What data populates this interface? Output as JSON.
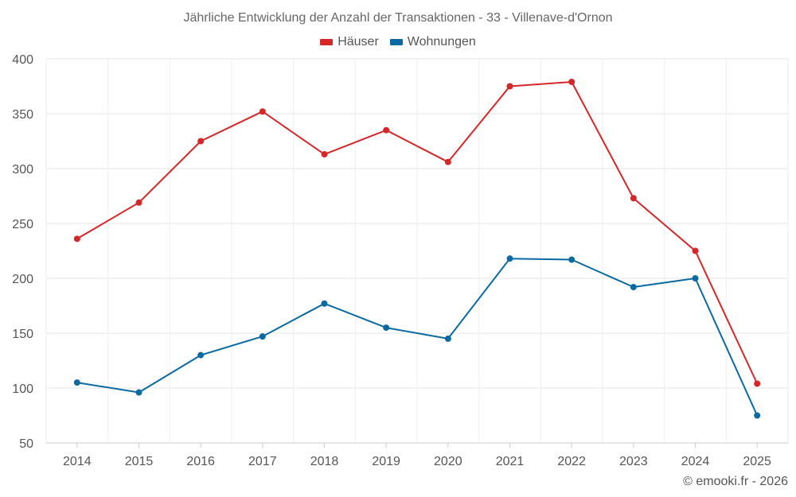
{
  "chart_data": {
    "type": "line",
    "title": "Jährliche Entwicklung der Anzahl der Transaktionen - 33 - Villenave-d'Ornon",
    "categories": [
      "2014",
      "2015",
      "2016",
      "2017",
      "2018",
      "2019",
      "2020",
      "2021",
      "2022",
      "2023",
      "2024",
      "2025"
    ],
    "series": [
      {
        "name": "Häuser",
        "color": "#d62728",
        "values": [
          236,
          269,
          325,
          352,
          313,
          335,
          306,
          375,
          379,
          273,
          225,
          104
        ]
      },
      {
        "name": "Wohnungen",
        "color": "#0a6aa1",
        "values": [
          105,
          96,
          130,
          147,
          177,
          155,
          145,
          218,
          217,
          192,
          200,
          75
        ]
      }
    ],
    "ylim": [
      50,
      400
    ],
    "yticks": [
      50,
      100,
      150,
      200,
      250,
      300,
      350,
      400
    ],
    "grid": true,
    "legend_position": "top-center"
  },
  "credit": "© emooki.fr - 2026"
}
